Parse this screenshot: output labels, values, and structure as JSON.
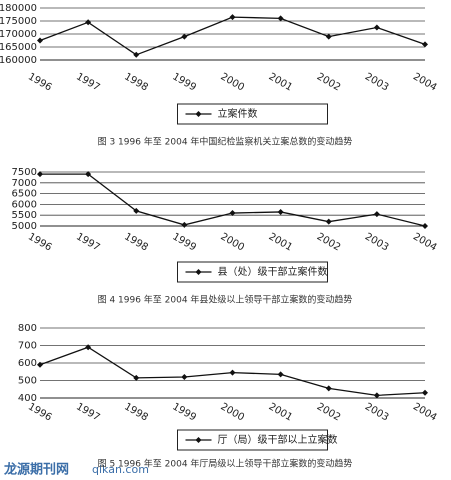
{
  "chart_data": [
    {
      "type": "line",
      "categories": [
        "1996",
        "1997",
        "1998",
        "1999",
        "2000",
        "2001",
        "2002",
        "2003",
        "2004"
      ],
      "series": [
        {
          "name": "立案件数",
          "color": "#111",
          "values": [
            167500,
            174500,
            162000,
            169000,
            176500,
            176000,
            169000,
            172500,
            166000
          ]
        }
      ],
      "ylim": [
        160000,
        180000
      ],
      "yticks": [
        160000,
        165000,
        170000,
        175000,
        180000
      ],
      "grid": true,
      "caption": "图 3   1996 年至 2004 年中国纪检监察机关立案总数的变动趋势"
    },
    {
      "type": "line",
      "categories": [
        "1996",
        "1997",
        "1998",
        "1999",
        "2000",
        "2001",
        "2002",
        "2003",
        "2004"
      ],
      "series": [
        {
          "name": "县（处）级干部立案件数",
          "color": "#111",
          "values": [
            7400,
            7400,
            5700,
            5050,
            5600,
            5650,
            5200,
            5550,
            5000
          ]
        }
      ],
      "ylim": [
        5000,
        7500
      ],
      "yticks": [
        5000,
        5500,
        6000,
        6500,
        7000,
        7500
      ],
      "grid": true,
      "caption": "图 4   1996 年至 2004 年县处级以上领导干部立案数的变动趋势"
    },
    {
      "type": "line",
      "categories": [
        "1996",
        "1997",
        "1998",
        "1999",
        "2000",
        "2001",
        "2002",
        "2003",
        "2004"
      ],
      "series": [
        {
          "name": "厅（局）级干部以上立案数",
          "color": "#111",
          "values": [
            590,
            690,
            515,
            520,
            545,
            535,
            455,
            415,
            430
          ]
        }
      ],
      "ylim": [
        400,
        800
      ],
      "yticks": [
        400,
        500,
        600,
        700,
        800
      ],
      "grid": true,
      "caption": "图 5   1996 年至 2004 年厅局级以上领导干部立案数的变动趋势"
    }
  ],
  "watermark": {
    "site": "龙源期刊网",
    "url": "qikan.com"
  }
}
